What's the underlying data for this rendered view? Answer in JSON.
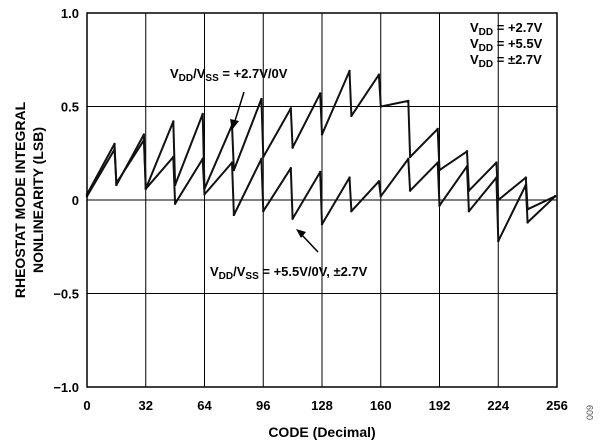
{
  "chart_data": {
    "type": "line",
    "xlabel": "CODE (Decimal)",
    "ylabel_line1": "RHEOSTAT MODE INTEGRAL",
    "ylabel_line2": "NONLINEARITY (LSB)",
    "xlim": [
      0,
      256
    ],
    "ylim": [
      -1.0,
      1.0
    ],
    "grid": true,
    "x_ticks": [
      0,
      32,
      64,
      96,
      128,
      160,
      192,
      224,
      256
    ],
    "y_ticks": [
      -1.0,
      -0.5,
      0,
      0.5,
      1.0
    ],
    "y_tick_labels": [
      "−1.0",
      "−0.5",
      "0",
      "0.5",
      "1.0"
    ],
    "legend": {
      "placement": "top-right",
      "entries": [
        {
          "main": "V",
          "sub": "DD",
          "value": " = +2.7V"
        },
        {
          "main": "V",
          "sub": "DD",
          "value": " = +5.5V"
        },
        {
          "main": "V",
          "sub": "DD",
          "value": " = ±2.7V"
        }
      ]
    },
    "annotations": [
      {
        "parts": [
          "V",
          "DD",
          "/V",
          "SS",
          " = +2.7V/0V"
        ]
      },
      {
        "parts": [
          "V",
          "DD",
          "/V",
          "SS",
          " = +5.5V/0V, ±2.7V"
        ]
      }
    ],
    "series": [
      {
        "x": [
          0,
          15,
          16,
          31,
          32,
          47,
          48,
          63,
          64,
          79,
          80,
          95,
          96,
          111,
          112,
          127,
          128,
          143,
          144,
          159,
          160,
          175,
          176,
          191,
          192,
          207,
          208,
          223,
          224,
          239,
          240,
          255
        ],
        "y": [
          0.03,
          0.3,
          0.08,
          0.35,
          0.06,
          0.42,
          0.08,
          0.46,
          0.06,
          0.4,
          0.16,
          0.54,
          0.23,
          0.49,
          0.28,
          0.57,
          0.35,
          0.69,
          0.45,
          0.67,
          0.5,
          0.53,
          0.23,
          0.38,
          0.16,
          0.26,
          0.05,
          0.2,
          0.0,
          0.12,
          -0.05,
          0.02
        ]
      },
      {
        "x": [
          0,
          15,
          16,
          31,
          32,
          47,
          48,
          63,
          64,
          79,
          80,
          95,
          96,
          111,
          112,
          127,
          128,
          143,
          144,
          159,
          160,
          175,
          176,
          191,
          192,
          207,
          208,
          223,
          224,
          239,
          240,
          255
        ],
        "y": [
          0.02,
          0.27,
          0.09,
          0.32,
          0.06,
          0.23,
          -0.02,
          0.22,
          0.03,
          0.2,
          -0.08,
          0.22,
          -0.06,
          0.17,
          -0.1,
          0.15,
          -0.13,
          0.12,
          -0.06,
          0.1,
          0.02,
          0.22,
          0.05,
          0.2,
          -0.03,
          0.18,
          -0.06,
          0.12,
          -0.22,
          0.08,
          -0.12,
          0.02
        ]
      }
    ]
  },
  "figure_id": "009"
}
